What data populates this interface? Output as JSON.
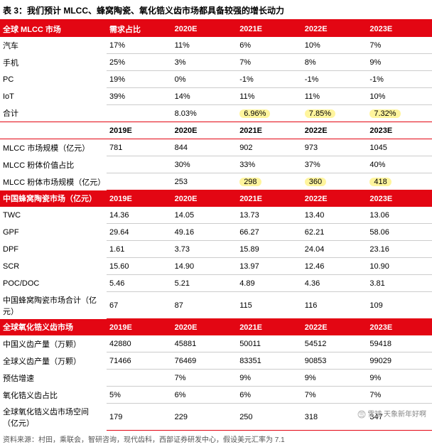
{
  "title": "表 3：我们预计 MLCC、蜂窝陶瓷、氧化锆义齿市场都具备较强的增长动力",
  "cols": [
    "2019E",
    "2020E",
    "2021E",
    "2022E",
    "2023E"
  ],
  "s1": {
    "h": "全球 MLCC 市场",
    "hcols": [
      "需求占比",
      "2020E",
      "2021E",
      "2022E",
      "2023E"
    ],
    "rows": [
      {
        "l": "汽车",
        "v": [
          "17%",
          "11%",
          "6%",
          "10%",
          "7%"
        ]
      },
      {
        "l": "手机",
        "v": [
          "25%",
          "3%",
          "7%",
          "8%",
          "9%"
        ]
      },
      {
        "l": "PC",
        "v": [
          "19%",
          "0%",
          "-1%",
          "-1%",
          "-1%"
        ]
      },
      {
        "l": "IoT",
        "v": [
          "39%",
          "14%",
          "11%",
          "11%",
          "10%"
        ]
      },
      {
        "l": "合计",
        "v": [
          "",
          "8.03%",
          "6.96%",
          "7.85%",
          "7.32%"
        ],
        "hl": [
          2,
          3,
          4
        ]
      }
    ],
    "rows2": [
      {
        "l": "MLCC 市场规模（亿元）",
        "v": [
          "781",
          "844",
          "902",
          "973",
          "1045"
        ]
      },
      {
        "l": "MLCC 粉体价值占比",
        "v": [
          "",
          "30%",
          "33%",
          "37%",
          "40%"
        ]
      },
      {
        "l": "MLCC 粉体市场规模（亿元）",
        "v": [
          "",
          "253",
          "298",
          "360",
          "418"
        ],
        "hl": [
          2,
          3,
          4
        ]
      }
    ]
  },
  "s2": {
    "h": "中国蜂窝陶瓷市场（亿元）",
    "rows": [
      {
        "l": "TWC",
        "v": [
          "14.36",
          "14.05",
          "13.73",
          "13.40",
          "13.06"
        ]
      },
      {
        "l": "GPF",
        "v": [
          "29.64",
          "49.16",
          "66.27",
          "62.21",
          "58.06"
        ]
      },
      {
        "l": "DPF",
        "v": [
          "1.61",
          "3.73",
          "15.89",
          "24.04",
          "23.16"
        ]
      },
      {
        "l": "SCR",
        "v": [
          "15.60",
          "14.90",
          "13.97",
          "12.46",
          "10.90"
        ]
      },
      {
        "l": "POC/DOC",
        "v": [
          "5.46",
          "5.21",
          "4.89",
          "4.36",
          "3.81"
        ]
      },
      {
        "l": "中国蜂窝陶瓷市场合计（亿元）",
        "v": [
          "67",
          "87",
          "115",
          "116",
          "109"
        ]
      }
    ]
  },
  "s3": {
    "h": "全球氧化锆义齿市场",
    "rows": [
      {
        "l": "中国义齿产量（万颗）",
        "v": [
          "42880",
          "45881",
          "50011",
          "54512",
          "59418"
        ]
      },
      {
        "l": "全球义齿产量（万颗）",
        "v": [
          "71466",
          "76469",
          "83351",
          "90853",
          "99029"
        ]
      },
      {
        "l": "预估增速",
        "v": [
          "",
          "7%",
          "9%",
          "9%",
          "9%"
        ]
      },
      {
        "l": "氧化锆义齿占比",
        "v": [
          "5%",
          "6%",
          "6%",
          "7%",
          "7%"
        ]
      },
      {
        "l": "全球氧化锆义齿市场空间（亿元）",
        "v": [
          "179",
          "229",
          "250",
          "318",
          "347"
        ]
      }
    ]
  },
  "source": "资料来源：村田，乘联会，智研咨询，现代齿科，西部证券研发中心，假设美元汇率为 7.1",
  "watermark": "雪球  天象新年好啊"
}
